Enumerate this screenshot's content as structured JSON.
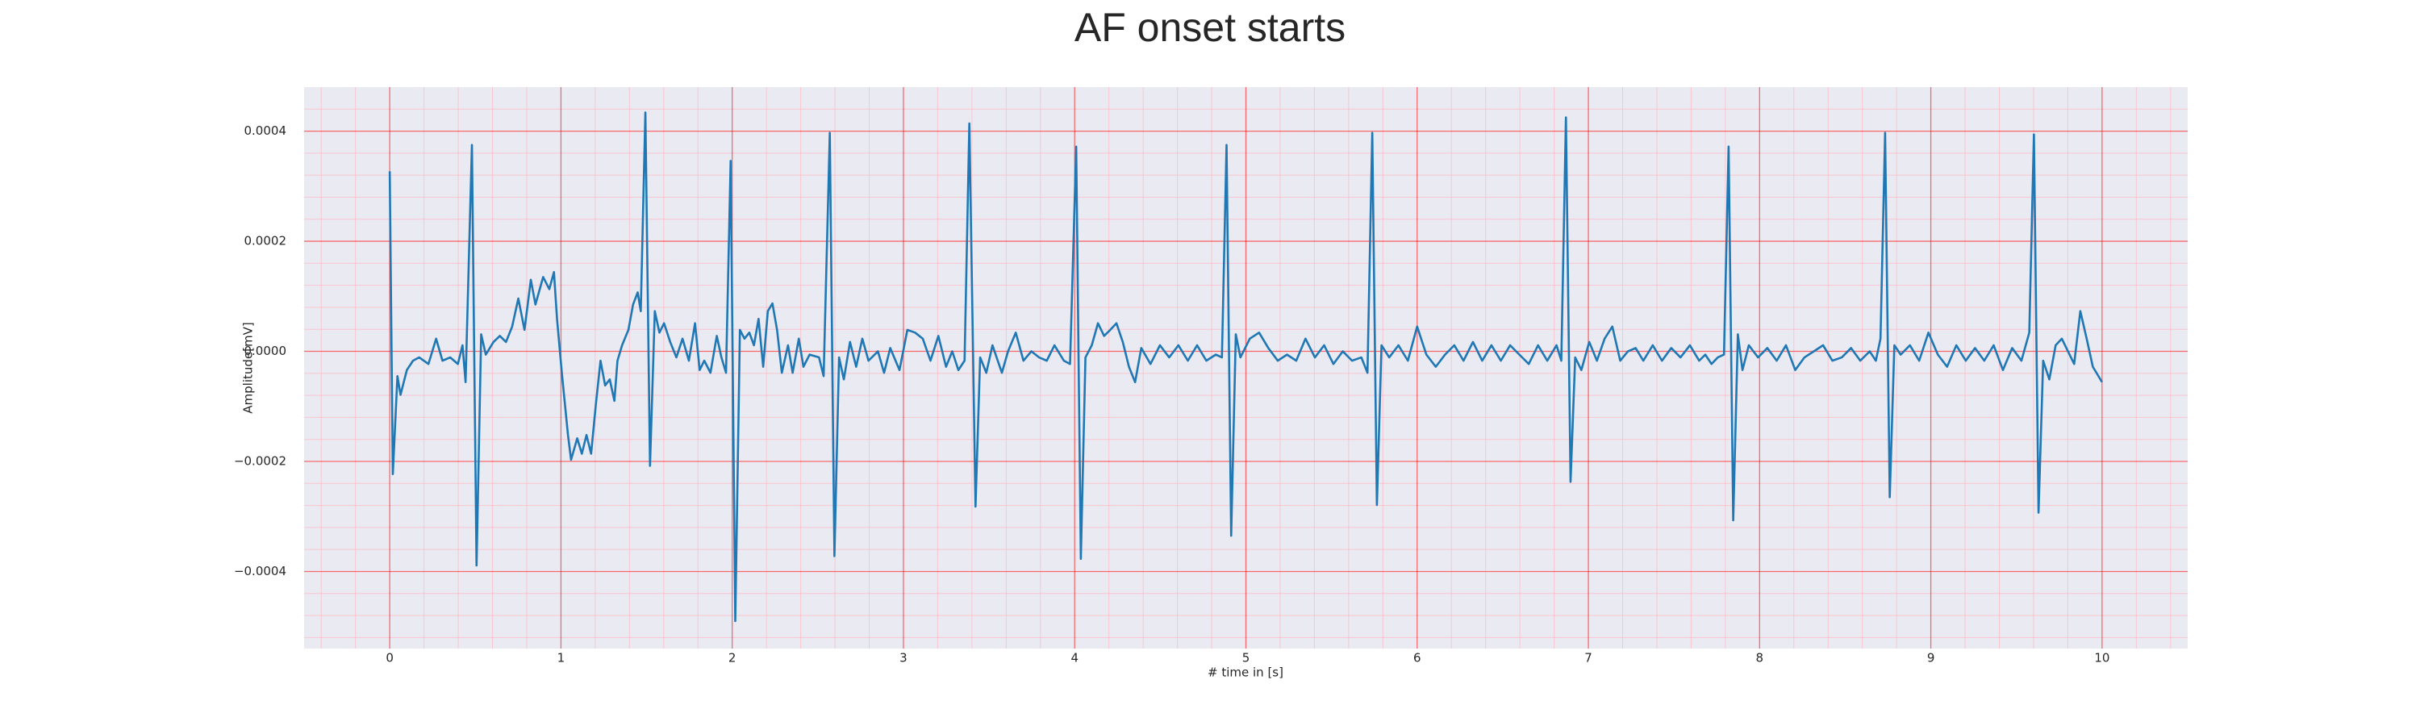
{
  "chart_data": {
    "type": "line",
    "title": "AF onset starts",
    "x_label": "# time in [s]",
    "y_label": "Amplitude[mV]",
    "color": "#1f77b4",
    "grid": true,
    "xlim": [
      -0.5,
      10.5
    ],
    "ylim": [
      -0.00054,
      0.00048
    ],
    "xticks": [
      0,
      1,
      2,
      3,
      4,
      5,
      6,
      7,
      8,
      9,
      10
    ],
    "yticks": [
      {
        "value": -0.0004,
        "label": "−0.0004"
      },
      {
        "value": -0.0002,
        "label": "−0.0002"
      },
      {
        "value": 0,
        "label": "0.0000"
      },
      {
        "value": 0.0002,
        "label": "0.0002"
      },
      {
        "value": 0.0004,
        "label": "0.0004"
      }
    ],
    "xminorticks": [
      -0.4,
      -0.2,
      0.2,
      0.4,
      0.6,
      0.8,
      1.2,
      1.4,
      1.6,
      1.8,
      2.2,
      2.4,
      2.6,
      2.8,
      3.2,
      3.4,
      3.6,
      3.8,
      4.2,
      4.4,
      4.6,
      4.8,
      5.2,
      5.4,
      5.6,
      5.8,
      6.2,
      6.4,
      6.6,
      6.8,
      7.2,
      7.4,
      7.6,
      7.8,
      8.2,
      8.4,
      8.6,
      8.8,
      9.2,
      9.4,
      9.6,
      9.8,
      10.2,
      10.4
    ],
    "yminorticks": [
      -0.00052,
      -0.00048,
      -0.00044,
      -0.00036,
      -0.00032,
      -0.00028,
      -0.00024,
      -0.00016,
      -0.00012,
      -8e-05,
      -4e-05,
      4e-05,
      8e-05,
      0.00012,
      0.00016,
      0.00024,
      0.00028,
      0.00032,
      0.00036,
      0.00044
    ],
    "x": [
      0,
      0.018,
      0.045,
      0.063,
      0.1,
      0.136,
      0.172,
      0.226,
      0.271,
      0.308,
      0.353,
      0.398,
      0.425,
      0.443,
      0.48,
      0.507,
      0.534,
      0.561,
      0.606,
      0.643,
      0.679,
      0.715,
      0.751,
      0.787,
      0.824,
      0.851,
      0.896,
      0.932,
      0.959,
      0.977,
      1.005,
      1.041,
      1.059,
      1.095,
      1.122,
      1.149,
      1.176,
      1.204,
      1.231,
      1.258,
      1.285,
      1.312,
      1.33,
      1.357,
      1.394,
      1.421,
      1.448,
      1.466,
      1.493,
      1.52,
      1.548,
      1.575,
      1.602,
      1.638,
      1.674,
      1.71,
      1.747,
      1.783,
      1.81,
      1.837,
      1.873,
      1.91,
      1.937,
      1.964,
      1.991,
      2.018,
      2.045,
      2.072,
      2.1,
      2.127,
      2.154,
      2.181,
      2.208,
      2.235,
      2.262,
      2.29,
      2.326,
      2.353,
      2.389,
      2.416,
      2.452,
      2.507,
      2.534,
      2.57,
      2.597,
      2.624,
      2.652,
      2.688,
      2.724,
      2.76,
      2.796,
      2.851,
      2.887,
      2.923,
      2.977,
      3.023,
      3.068,
      3.113,
      3.158,
      3.204,
      3.249,
      3.285,
      3.321,
      3.357,
      3.385,
      3.421,
      3.448,
      3.484,
      3.52,
      3.575,
      3.611,
      3.656,
      3.701,
      3.747,
      3.792,
      3.837,
      3.882,
      3.937,
      3.973,
      4.009,
      4.036,
      4.063,
      4.1,
      4.136,
      4.172,
      4.208,
      4.244,
      4.281,
      4.317,
      4.353,
      4.389,
      4.443,
      4.498,
      4.552,
      4.606,
      4.661,
      4.715,
      4.769,
      4.824,
      4.86,
      4.887,
      4.914,
      4.941,
      4.968,
      5.023,
      5.077,
      5.131,
      5.186,
      5.24,
      5.294,
      5.348,
      5.403,
      5.457,
      5.511,
      5.566,
      5.62,
      5.674,
      5.71,
      5.738,
      5.765,
      5.792,
      5.837,
      5.891,
      5.946,
      6,
      6.054,
      6.109,
      6.163,
      6.217,
      6.271,
      6.326,
      6.38,
      6.434,
      6.489,
      6.543,
      6.597,
      6.652,
      6.706,
      6.76,
      6.814,
      6.842,
      6.869,
      6.896,
      6.923,
      6.959,
      7.005,
      7.05,
      7.095,
      7.14,
      7.186,
      7.231,
      7.276,
      7.321,
      7.376,
      7.43,
      7.484,
      7.538,
      7.593,
      7.647,
      7.683,
      7.719,
      7.756,
      7.792,
      7.819,
      7.846,
      7.873,
      7.9,
      7.937,
      7.991,
      8.045,
      8.1,
      8.154,
      8.208,
      8.262,
      8.317,
      8.371,
      8.425,
      8.48,
      8.534,
      8.588,
      8.643,
      8.679,
      8.706,
      8.733,
      8.76,
      8.787,
      8.824,
      8.878,
      8.932,
      8.986,
      9.041,
      9.095,
      9.149,
      9.204,
      9.258,
      9.312,
      9.367,
      9.421,
      9.475,
      9.529,
      9.575,
      9.602,
      9.629,
      9.656,
      9.692,
      9.729,
      9.765,
      9.801,
      9.837,
      9.873,
      9.91,
      9.946,
      10
    ],
    "values": [
      0.000327,
      -0.000223,
      -4.5e-05,
      -7.9e-05,
      -3.4e-05,
      -1.7e-05,
      -1.1e-05,
      -2.3e-05,
      2.3e-05,
      -1.7e-05,
      -1.1e-05,
      -2.3e-05,
      1.1e-05,
      -5.6e-05,
      0.000375,
      -0.000389,
      3.1e-05,
      -6e-06,
      1.7e-05,
      2.8e-05,
      1.7e-05,
      4.5e-05,
      9.6e-05,
      3.9e-05,
      0.00013,
      8.5e-05,
      0.000135,
      0.000113,
      0.000144,
      5.9e-05,
      -3.9e-05,
      -0.000152,
      -0.000197,
      -0.000158,
      -0.000186,
      -0.000152,
      -0.000186,
      -9.6e-05,
      -1.7e-05,
      -6.2e-05,
      -5.1e-05,
      -9e-05,
      -1.7e-05,
      1.1e-05,
      3.9e-05,
      8.5e-05,
      0.000107,
      7.3e-05,
      0.000434,
      -0.000208,
      7.3e-05,
      3.4e-05,
      5.1e-05,
      1.7e-05,
      -1.1e-05,
      2.3e-05,
      -1.7e-05,
      5.1e-05,
      -3.4e-05,
      -1.7e-05,
      -3.9e-05,
      2.8e-05,
      -1.1e-05,
      -3.9e-05,
      0.000346,
      -0.00049,
      3.9e-05,
      2.3e-05,
      3.4e-05,
      1.1e-05,
      5.9e-05,
      -2.8e-05,
      7.3e-05,
      8.7e-05,
      3.9e-05,
      -3.9e-05,
      1.1e-05,
      -3.9e-05,
      2.3e-05,
      -2.8e-05,
      -6e-06,
      -1.1e-05,
      -4.5e-05,
      0.000397,
      -0.000372,
      -1.1e-05,
      -5.1e-05,
      1.7e-05,
      -2.8e-05,
      2.3e-05,
      -1.7e-05,
      0,
      -3.9e-05,
      6e-06,
      -3.4e-05,
      3.9e-05,
      3.4e-05,
      2.3e-05,
      -1.7e-05,
      2.8e-05,
      -2.8e-05,
      0,
      -3.4e-05,
      -1.7e-05,
      0.000414,
      -0.000282,
      -1.1e-05,
      -3.9e-05,
      1.1e-05,
      -3.9e-05,
      0,
      3.4e-05,
      -1.7e-05,
      0,
      -1.1e-05,
      -1.7e-05,
      1.1e-05,
      -1.7e-05,
      -2.3e-05,
      0.000372,
      -0.000377,
      -1.1e-05,
      1.1e-05,
      5.1e-05,
      2.8e-05,
      3.9e-05,
      5.1e-05,
      1.7e-05,
      -2.8e-05,
      -5.6e-05,
      6e-06,
      -2.3e-05,
      1.1e-05,
      -1.1e-05,
      1.1e-05,
      -1.7e-05,
      1.1e-05,
      -1.7e-05,
      -6e-06,
      -1.1e-05,
      0.000375,
      -0.000335,
      3.1e-05,
      -1.1e-05,
      2.3e-05,
      3.4e-05,
      6e-06,
      -1.7e-05,
      -6e-06,
      -1.7e-05,
      2.3e-05,
      -1.1e-05,
      1.1e-05,
      -2.3e-05,
      0,
      -1.7e-05,
      -1.1e-05,
      -3.9e-05,
      0.000397,
      -0.000279,
      1.1e-05,
      -1.1e-05,
      1.1e-05,
      -1.7e-05,
      4.5e-05,
      -6e-06,
      -2.8e-05,
      -6e-06,
      1.1e-05,
      -1.7e-05,
      1.7e-05,
      -1.7e-05,
      1.1e-05,
      -1.7e-05,
      1.1e-05,
      -6e-06,
      -2.3e-05,
      1.1e-05,
      -1.7e-05,
      1.1e-05,
      -1.7e-05,
      0.000425,
      -0.000237,
      -1.1e-05,
      -3.4e-05,
      1.7e-05,
      -1.7e-05,
      2.3e-05,
      4.5e-05,
      -1.7e-05,
      0,
      6e-06,
      -1.7e-05,
      1.1e-05,
      -1.7e-05,
      6e-06,
      -1.1e-05,
      1.1e-05,
      -1.7e-05,
      -6e-06,
      -2.3e-05,
      -1.1e-05,
      -6e-06,
      0.000372,
      -0.000307,
      3.1e-05,
      -3.4e-05,
      1.1e-05,
      -1.1e-05,
      6e-06,
      -1.7e-05,
      1.1e-05,
      -3.4e-05,
      -1.1e-05,
      0,
      1.1e-05,
      -1.7e-05,
      -1.1e-05,
      6e-06,
      -1.7e-05,
      0,
      -1.7e-05,
      2.3e-05,
      0.000397,
      -0.000265,
      1.1e-05,
      -6e-06,
      1.1e-05,
      -1.7e-05,
      3.4e-05,
      -6e-06,
      -2.8e-05,
      1.1e-05,
      -1.7e-05,
      6e-06,
      -1.7e-05,
      1.1e-05,
      -3.4e-05,
      6e-06,
      -1.7e-05,
      3.4e-05,
      0.000394,
      -0.000293,
      -1.7e-05,
      -5.1e-05,
      1.1e-05,
      2.3e-05,
      0,
      -2.3e-05,
      7.3e-05,
      2.3e-05,
      -2.8e-05,
      -5.6e-05
    ]
  }
}
